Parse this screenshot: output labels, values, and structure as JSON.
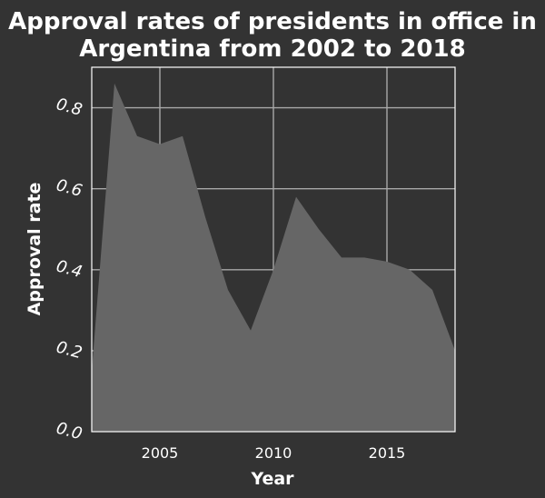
{
  "chart_data": {
    "type": "area",
    "title_line1": "Approval rates of presidents in office in",
    "title_line2": "Argentina from 2002 to 2018",
    "xlabel": "Year",
    "ylabel": "Approval rate",
    "xlim": [
      2002,
      2018
    ],
    "ylim": [
      0,
      0.9
    ],
    "xticks": [
      2005,
      2010,
      2015
    ],
    "xtick_labels": [
      "2005",
      "2010",
      "2015"
    ],
    "yticks": [
      0.0,
      0.2,
      0.4,
      0.6,
      0.8
    ],
    "ytick_labels": [
      "0.0",
      "0.2",
      "0.4",
      "0.6",
      "0.8"
    ],
    "grid": true,
    "series": [
      {
        "x": [
          2002,
          2003,
          2004,
          2005,
          2006,
          2007,
          2008,
          2009,
          2010,
          2011,
          2012,
          2013,
          2014,
          2015,
          2016,
          2017,
          2018
        ],
        "y": [
          0.15,
          0.86,
          0.73,
          0.71,
          0.73,
          0.53,
          0.35,
          0.25,
          0.4,
          0.58,
          0.5,
          0.43,
          0.43,
          0.42,
          0.4,
          0.35,
          0.2
        ]
      }
    ],
    "colors": {
      "background": "#333333",
      "area": "#666666",
      "grid": "#a8a8a8",
      "text": "#ffffff"
    }
  }
}
